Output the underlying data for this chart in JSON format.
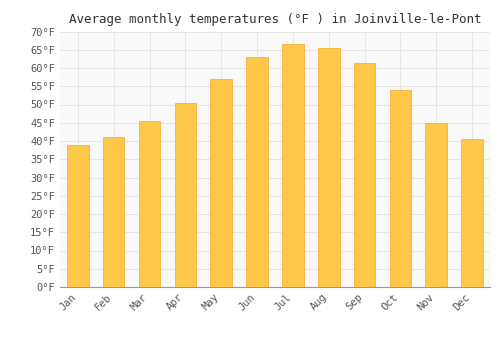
{
  "title": "Average monthly temperatures (°F ) in Joinville-le-Pont",
  "months": [
    "Jan",
    "Feb",
    "Mar",
    "Apr",
    "May",
    "Jun",
    "Jul",
    "Aug",
    "Sep",
    "Oct",
    "Nov",
    "Dec"
  ],
  "values": [
    39,
    41,
    45.5,
    50.5,
    57,
    63,
    66.5,
    65.5,
    61.5,
    54,
    45,
    40.5
  ],
  "bar_color_face": "#FFC84A",
  "bar_color_edge": "#F5A623",
  "background_color": "#ffffff",
  "plot_bg_color": "#f9f9f9",
  "ylim": [
    0,
    70
  ],
  "yticks": [
    0,
    5,
    10,
    15,
    20,
    25,
    30,
    35,
    40,
    45,
    50,
    55,
    60,
    65,
    70
  ],
  "ytick_labels": [
    "0°F",
    "5°F",
    "10°F",
    "15°F",
    "20°F",
    "25°F",
    "30°F",
    "35°F",
    "40°F",
    "45°F",
    "50°F",
    "55°F",
    "60°F",
    "65°F",
    "70°F"
  ],
  "title_fontsize": 9,
  "tick_fontsize": 7.5,
  "grid_color": "#dddddd",
  "bar_width": 0.6
}
